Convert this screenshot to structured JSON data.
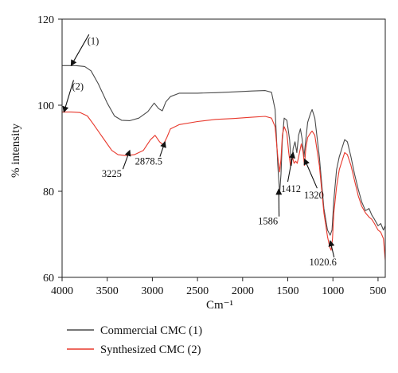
{
  "chart_data": {
    "type": "line",
    "xlabel": "Cm⁻¹",
    "ylabel": "% intensity",
    "xlim": [
      4000,
      420
    ],
    "ylim": [
      60,
      120
    ],
    "x_reversed": true,
    "x_ticks": [
      4000,
      3500,
      3000,
      2500,
      2000,
      1500,
      1000,
      500
    ],
    "y_ticks": [
      60,
      80,
      100,
      120
    ],
    "grid": false,
    "legend_position": "bottom-left, below plot",
    "series": [
      {
        "name": "Commercial CMC (1)",
        "color": "#4a4a4a",
        "tag": "(1)",
        "points": [
          [
            4000,
            109.2
          ],
          [
            3850,
            109.2
          ],
          [
            3750,
            109.0
          ],
          [
            3680,
            108.0
          ],
          [
            3600,
            105.0
          ],
          [
            3500,
            100.5
          ],
          [
            3420,
            97.5
          ],
          [
            3340,
            96.5
          ],
          [
            3250,
            96.4
          ],
          [
            3150,
            97.0
          ],
          [
            3050,
            98.5
          ],
          [
            2980,
            100.5
          ],
          [
            2930,
            99.2
          ],
          [
            2890,
            98.7
          ],
          [
            2850,
            100.8
          ],
          [
            2800,
            102.0
          ],
          [
            2700,
            102.8
          ],
          [
            2500,
            102.8
          ],
          [
            2300,
            102.9
          ],
          [
            2100,
            103.1
          ],
          [
            1900,
            103.3
          ],
          [
            1750,
            103.4
          ],
          [
            1680,
            103.0
          ],
          [
            1640,
            99.0
          ],
          [
            1610,
            86.0
          ],
          [
            1590,
            79.5
          ],
          [
            1575,
            84.0
          ],
          [
            1560,
            92.0
          ],
          [
            1540,
            97.0
          ],
          [
            1510,
            96.5
          ],
          [
            1480,
            92.0
          ],
          [
            1460,
            86.0
          ],
          [
            1440,
            90.0
          ],
          [
            1420,
            91.5
          ],
          [
            1400,
            89.0
          ],
          [
            1380,
            93.0
          ],
          [
            1360,
            94.5
          ],
          [
            1340,
            92.0
          ],
          [
            1320,
            88.0
          ],
          [
            1300,
            92.0
          ],
          [
            1280,
            96.0
          ],
          [
            1250,
            98.0
          ],
          [
            1230,
            99.0
          ],
          [
            1200,
            97.0
          ],
          [
            1150,
            88.0
          ],
          [
            1100,
            76.0
          ],
          [
            1060,
            71.0
          ],
          [
            1030,
            69.8
          ],
          [
            1010,
            71.0
          ],
          [
            990,
            78.0
          ],
          [
            960,
            85.0
          ],
          [
            930,
            88.0
          ],
          [
            900,
            90.0
          ],
          [
            870,
            92.0
          ],
          [
            840,
            91.5
          ],
          [
            800,
            88.0
          ],
          [
            760,
            84.0
          ],
          [
            720,
            80.5
          ],
          [
            680,
            77.5
          ],
          [
            640,
            75.5
          ],
          [
            600,
            76.0
          ],
          [
            570,
            74.5
          ],
          [
            540,
            73.5
          ],
          [
            500,
            72.0
          ],
          [
            470,
            72.5
          ],
          [
            440,
            71.0
          ],
          [
            420,
            72.0
          ]
        ]
      },
      {
        "name": "Synthesized CMC (2)",
        "color": "#e8382c",
        "tag": "(2)",
        "points": [
          [
            4000,
            98.4
          ],
          [
            3900,
            98.4
          ],
          [
            3800,
            98.3
          ],
          [
            3720,
            97.5
          ],
          [
            3650,
            95.5
          ],
          [
            3550,
            92.5
          ],
          [
            3450,
            89.5
          ],
          [
            3380,
            88.5
          ],
          [
            3300,
            88.3
          ],
          [
            3200,
            88.5
          ],
          [
            3100,
            89.5
          ],
          [
            3020,
            92.0
          ],
          [
            2970,
            93.0
          ],
          [
            2920,
            91.5
          ],
          [
            2880,
            90.8
          ],
          [
            2840,
            92.5
          ],
          [
            2800,
            94.5
          ],
          [
            2700,
            95.5
          ],
          [
            2500,
            96.2
          ],
          [
            2300,
            96.7
          ],
          [
            2100,
            96.9
          ],
          [
            1900,
            97.2
          ],
          [
            1750,
            97.4
          ],
          [
            1680,
            97.0
          ],
          [
            1640,
            95.0
          ],
          [
            1610,
            88.0
          ],
          [
            1590,
            84.5
          ],
          [
            1575,
            87.5
          ],
          [
            1560,
            93.0
          ],
          [
            1540,
            95.0
          ],
          [
            1510,
            93.5
          ],
          [
            1490,
            89.0
          ],
          [
            1470,
            86.0
          ],
          [
            1450,
            88.0
          ],
          [
            1430,
            86.5
          ],
          [
            1412,
            87.0
          ],
          [
            1395,
            86.5
          ],
          [
            1370,
            89.0
          ],
          [
            1350,
            91.0
          ],
          [
            1330,
            89.0
          ],
          [
            1315,
            86.0
          ],
          [
            1300,
            90.0
          ],
          [
            1280,
            92.5
          ],
          [
            1250,
            93.5
          ],
          [
            1230,
            94.0
          ],
          [
            1200,
            93.0
          ],
          [
            1150,
            86.0
          ],
          [
            1100,
            75.0
          ],
          [
            1060,
            69.5
          ],
          [
            1035,
            67.0
          ],
          [
            1020,
            66.3
          ],
          [
            1005,
            69.0
          ],
          [
            990,
            75.0
          ],
          [
            960,
            81.0
          ],
          [
            930,
            85.0
          ],
          [
            900,
            87.0
          ],
          [
            870,
            89.0
          ],
          [
            840,
            88.5
          ],
          [
            800,
            86.0
          ],
          [
            760,
            82.5
          ],
          [
            720,
            79.0
          ],
          [
            680,
            76.5
          ],
          [
            640,
            75.0
          ],
          [
            600,
            74.0
          ],
          [
            570,
            73.5
          ],
          [
            540,
            72.5
          ],
          [
            500,
            71.0
          ],
          [
            470,
            70.5
          ],
          [
            440,
            69.0
          ],
          [
            420,
            64.0
          ]
        ]
      }
    ],
    "annotations": [
      {
        "label": "(1)",
        "target": [
          3900,
          109.2
        ],
        "text_at": [
          3720,
          114.2
        ],
        "anchor": "start"
      },
      {
        "label": "(2)",
        "target": [
          3980,
          98.4
        ],
        "text_at": [
          3890,
          103.6
        ],
        "anchor": "start"
      },
      {
        "label": "3225",
        "target": [
          3250,
          89.5
        ],
        "text_at": [
          3450,
          83.3
        ],
        "anchor": "middle"
      },
      {
        "label": "2878.5",
        "target": [
          2860,
          91.5
        ],
        "text_at": [
          3040,
          86.2
        ],
        "anchor": "middle"
      },
      {
        "label": "1586",
        "target": [
          1600,
          80.5
        ],
        "text_at": [
          1720,
          72.3
        ],
        "anchor": "middle"
      },
      {
        "label": "1412",
        "target": [
          1440,
          89.0
        ],
        "text_at": [
          1465,
          79.8
        ],
        "anchor": "middle"
      },
      {
        "label": "1320",
        "target": [
          1315,
          87.5
        ],
        "text_at": [
          1210,
          78.3
        ],
        "anchor": "middle"
      },
      {
        "label": "1020.6",
        "target": [
          1030,
          68.5
        ],
        "text_at": [
          1110,
          62.8
        ],
        "anchor": "middle"
      }
    ]
  }
}
